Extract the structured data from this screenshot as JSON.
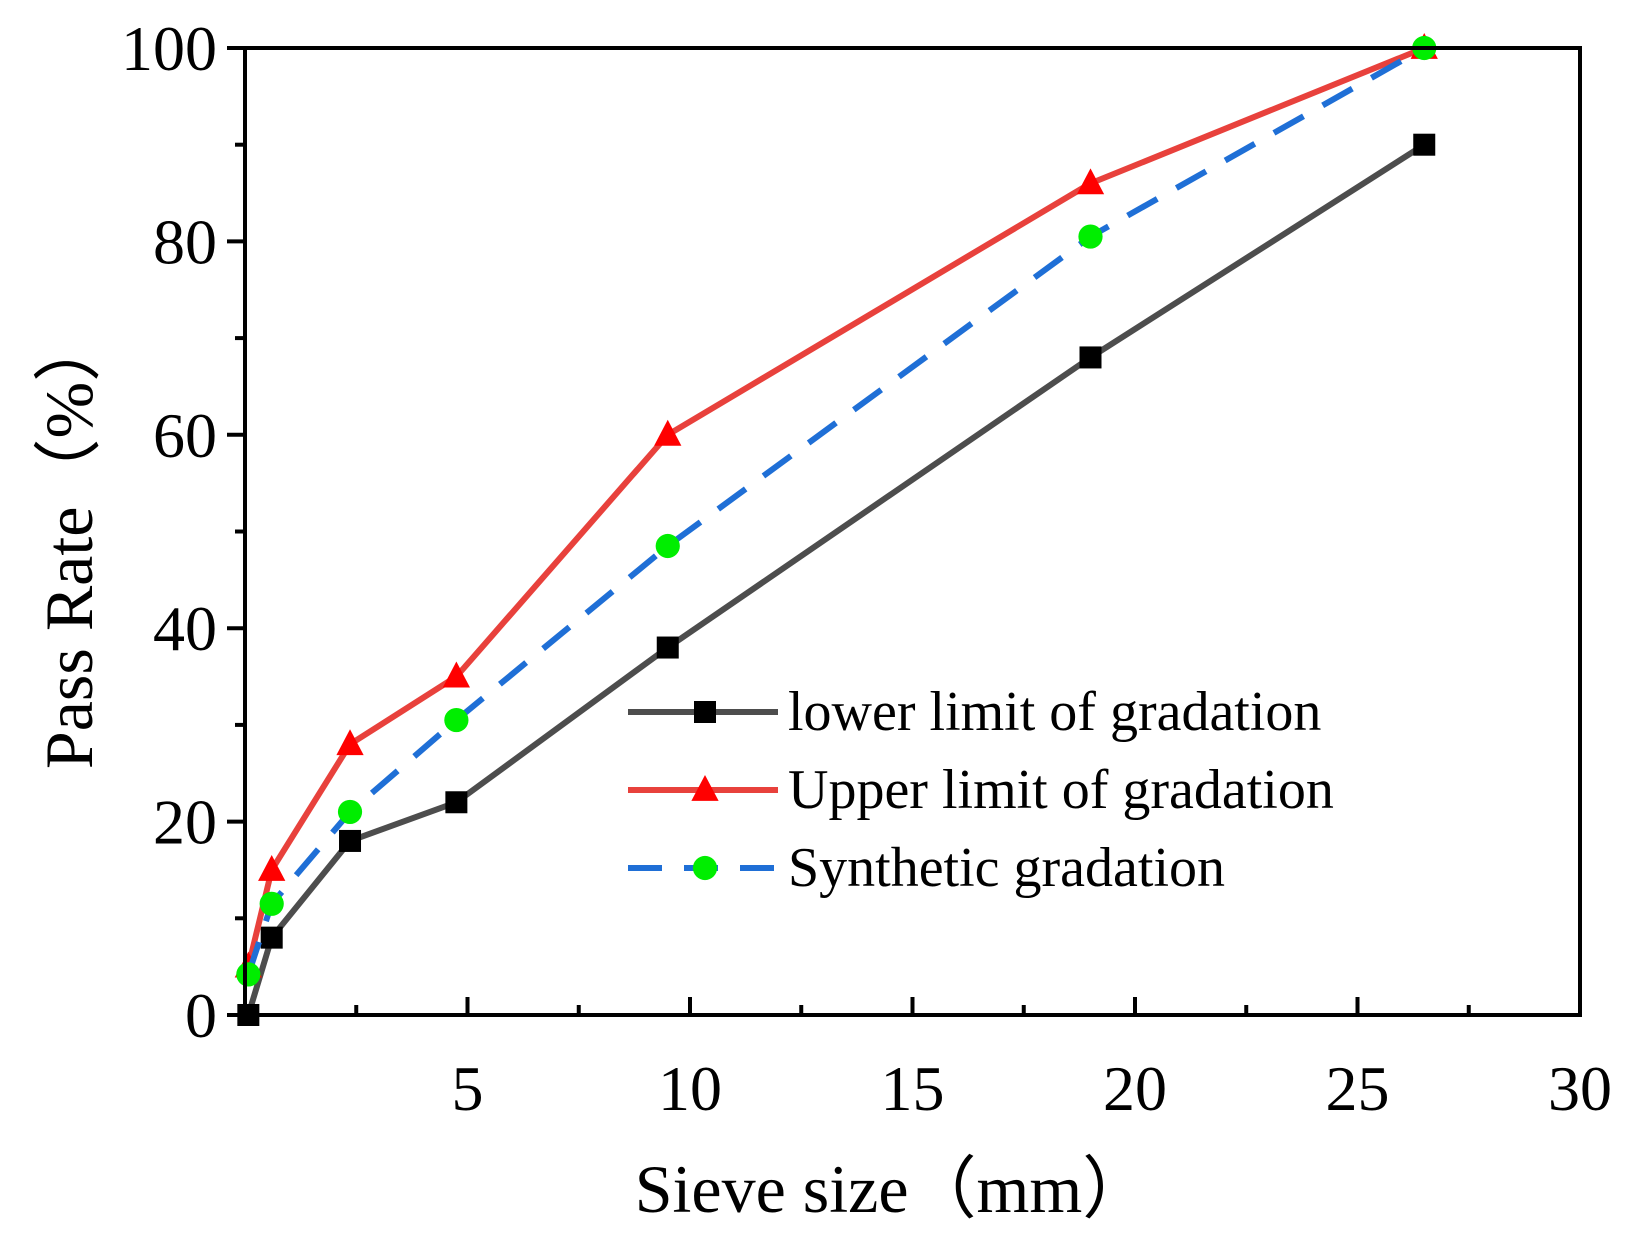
{
  "chart_data": {
    "type": "line",
    "title": "",
    "xlabel": "Sieve size（mm）",
    "ylabel": "Pass Rate（%）",
    "xlim": [
      0,
      30
    ],
    "ylim": [
      0,
      100
    ],
    "xticks": [
      5,
      10,
      15,
      20,
      25,
      30
    ],
    "xtick_labels": [
      "5",
      "10",
      "15",
      "20",
      "25",
      "30"
    ],
    "yticks": [
      0,
      20,
      40,
      60,
      80,
      100
    ],
    "ytick_labels": [
      "0",
      "20",
      "40",
      "60",
      "80",
      "100"
    ],
    "grid": false,
    "legend_position": "center-right",
    "series": [
      {
        "name": "lower limit of gradation",
        "color": "#4d4d4d",
        "marker": "square",
        "marker_color": "#000000",
        "dash": "solid",
        "x": [
          0.075,
          0.6,
          2.36,
          4.75,
          9.5,
          19,
          26.5
        ],
        "y": [
          0,
          8,
          18,
          22,
          38,
          68,
          90
        ]
      },
      {
        "name": "Upper limit of gradation",
        "color": "#e8413c",
        "marker": "triangle",
        "marker_color": "#ff0000",
        "dash": "solid",
        "x": [
          0.075,
          0.6,
          2.36,
          4.75,
          9.5,
          19,
          26.5
        ],
        "y": [
          5,
          15,
          28,
          35,
          60,
          86,
          100
        ]
      },
      {
        "name": "Synthetic gradation",
        "color": "#1f6fd6",
        "marker": "circle",
        "marker_color": "#00ee00",
        "dash": "dashed",
        "x": [
          0.075,
          0.6,
          2.36,
          4.75,
          9.5,
          19,
          26.5
        ],
        "y": [
          4.2,
          11.5,
          21,
          30.5,
          48.5,
          80.5,
          100
        ]
      }
    ]
  }
}
